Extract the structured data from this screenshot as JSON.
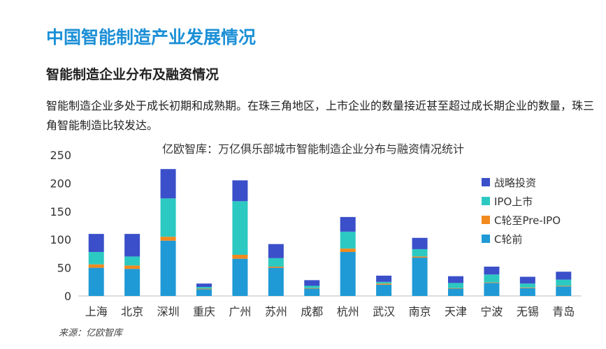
{
  "header": {
    "title": "中国智能制造产业发展情况",
    "subtitle": "智能制造企业分布及融资情况",
    "description": "智能制造企业多处于成长初期和成熟期。在珠三角地区，上市企业的数量接近甚至超过成长期企业的数量，珠三角智能制造比较发达。"
  },
  "footer": {
    "source": "来源：亿欧智库"
  },
  "chart_data": {
    "type": "bar",
    "stacked": true,
    "title": "亿欧智库：万亿俱乐部城市智能制造企业分布与融资情况统计",
    "categories": [
      "上海",
      "北京",
      "深圳",
      "重庆",
      "广州",
      "苏州",
      "成都",
      "杭州",
      "武汉",
      "南京",
      "天津",
      "宁波",
      "无锡",
      "青岛"
    ],
    "ylim": [
      0,
      250
    ],
    "yticks": [
      0,
      50,
      100,
      150,
      200,
      250
    ],
    "legend_position": "right",
    "series": [
      {
        "name": "C轮前",
        "color": "#1F9AD6",
        "values": [
          50,
          48,
          98,
          12,
          66,
          50,
          13,
          78,
          20,
          68,
          13,
          23,
          14,
          17
        ]
      },
      {
        "name": "C轮至Pre-IPO",
        "color": "#F28A1E",
        "values": [
          6,
          6,
          7,
          1,
          7,
          2,
          1,
          6,
          2,
          2,
          1,
          1,
          1,
          1
        ]
      },
      {
        "name": "IPO上市",
        "color": "#2CC9C2",
        "values": [
          22,
          16,
          68,
          3,
          95,
          15,
          4,
          30,
          3,
          13,
          9,
          14,
          7,
          11
        ]
      },
      {
        "name": "战略投资",
        "color": "#3A4FC9",
        "values": [
          32,
          40,
          52,
          6,
          37,
          25,
          10,
          26,
          11,
          20,
          12,
          14,
          12,
          14
        ]
      }
    ]
  }
}
